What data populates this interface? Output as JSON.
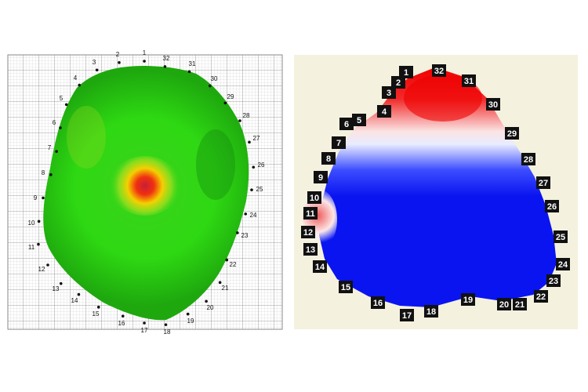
{
  "left_map": {
    "electrodes": [
      "1",
      "2",
      "3",
      "4",
      "5",
      "6",
      "7",
      "8",
      "9",
      "10",
      "11",
      "12",
      "13",
      "14",
      "15",
      "16",
      "17",
      "18",
      "19",
      "20",
      "21",
      "22",
      "23",
      "24",
      "25",
      "26",
      "27",
      "28",
      "29",
      "30",
      "31",
      "32"
    ]
  },
  "right_map": {
    "electrodes": [
      "1",
      "2",
      "3",
      "4",
      "5",
      "6",
      "7",
      "8",
      "9",
      "10",
      "11",
      "12",
      "13",
      "14",
      "15",
      "16",
      "17",
      "18",
      "19",
      "20",
      "21",
      "22",
      "23",
      "24",
      "25",
      "26",
      "27",
      "28",
      "29",
      "30",
      "31",
      "32"
    ]
  }
}
